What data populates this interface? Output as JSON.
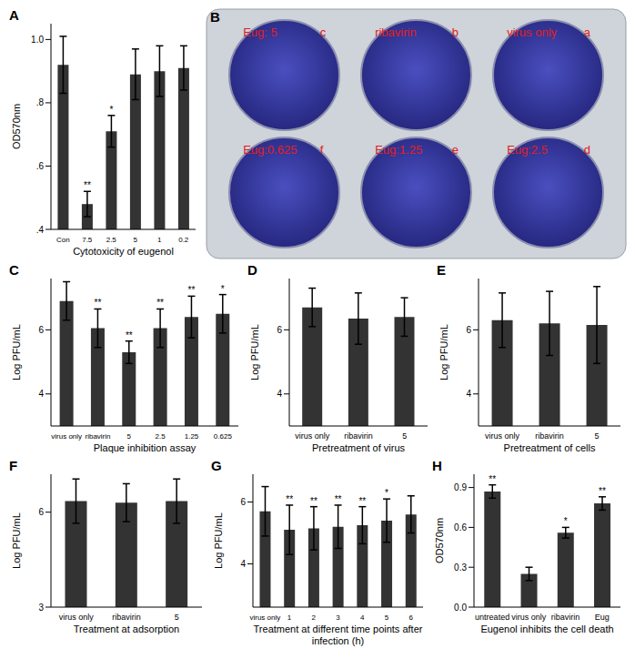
{
  "chart_data": [
    {
      "panel": "A",
      "type": "bar",
      "categories": [
        "Con",
        "7.5",
        "2.5",
        "5",
        "1",
        "0.2"
      ],
      "values": [
        0.92,
        0.48,
        0.71,
        0.89,
        0.9,
        0.91
      ],
      "errors": [
        0.09,
        0.04,
        0.05,
        0.08,
        0.08,
        0.07
      ],
      "significance": [
        null,
        "**",
        "*",
        null,
        null,
        null
      ],
      "ylabel": "OD570nm",
      "xlabel": "Cytotoxicity of eugenol",
      "ylim": [
        0.4,
        1.05
      ],
      "yticks": [
        {
          "value": 0.4,
          "label": ".4"
        },
        {
          "value": 0.6,
          "label": ".6"
        },
        {
          "value": 0.8,
          "label": ".8"
        },
        {
          "value": 1.0,
          "label": "1.0"
        }
      ],
      "color": "#333333"
    },
    {
      "panel": "C",
      "type": "bar",
      "categories": [
        "virus only",
        "ribavirin",
        "5",
        "2.5",
        "1.25",
        "0.625"
      ],
      "values": [
        6.9,
        6.05,
        5.3,
        6.05,
        6.4,
        6.5
      ],
      "errors": [
        0.6,
        0.6,
        0.35,
        0.6,
        0.65,
        0.6
      ],
      "significance": [
        null,
        "**",
        "**",
        "**",
        "**",
        "*"
      ],
      "ylabel": "Log PFU/mL",
      "xlabel": "Plaque inhibition assay",
      "ylim": [
        3,
        7.6
      ],
      "yticks": [
        4,
        6
      ],
      "color": "#333333"
    },
    {
      "panel": "D",
      "type": "bar",
      "categories": [
        "virus only",
        "ribavirin",
        "5"
      ],
      "values": [
        6.7,
        6.35,
        6.4
      ],
      "errors": [
        0.6,
        0.8,
        0.6
      ],
      "significance": [
        null,
        null,
        null
      ],
      "ylabel": "Log PFU/mL",
      "xlabel": "Pretreatment of virus",
      "ylim": [
        3,
        7.6
      ],
      "yticks": [
        4,
        6
      ],
      "color": "#333333"
    },
    {
      "panel": "E",
      "type": "bar",
      "categories": [
        "virus only",
        "ribavirin",
        "5"
      ],
      "values": [
        6.3,
        6.2,
        6.15
      ],
      "errors": [
        0.85,
        1.0,
        1.2
      ],
      "significance": [
        null,
        null,
        null
      ],
      "ylabel": "Log PFU/mL",
      "xlabel": "Pretreatment of cells",
      "ylim": [
        3,
        7.6
      ],
      "yticks": [
        4,
        6
      ],
      "color": "#333333"
    },
    {
      "panel": "F",
      "type": "bar",
      "categories": [
        "virus only",
        "ribavirin",
        "5"
      ],
      "values": [
        6.35,
        6.3,
        6.35
      ],
      "errors": [
        0.7,
        0.6,
        0.7
      ],
      "significance": [
        null,
        null,
        null
      ],
      "ylabel": "Log PFU/mL",
      "xlabel": "Treatment at adsorption",
      "ylim": [
        3,
        7.2
      ],
      "yticks": [
        3,
        6
      ],
      "color": "#333333"
    },
    {
      "panel": "G",
      "type": "bar",
      "categories": [
        "virus only",
        "1",
        "2",
        "3",
        "4",
        "5",
        "6"
      ],
      "values": [
        5.7,
        5.1,
        5.15,
        5.2,
        5.25,
        5.4,
        5.6
      ],
      "errors": [
        0.8,
        0.8,
        0.7,
        0.7,
        0.6,
        0.7,
        0.6
      ],
      "significance": [
        null,
        "**",
        "**",
        "**",
        "**",
        "*",
        null
      ],
      "ylabel": "Log PFU/mL",
      "xlabel": "Treatment at different time points after infection (h)",
      "ylim": [
        2.6,
        6.9
      ],
      "yticks": [
        4,
        6
      ],
      "color": "#333333"
    },
    {
      "panel": "H",
      "type": "bar",
      "categories": [
        "untreated",
        "virus only",
        "ribavirin",
        "Eug"
      ],
      "values": [
        0.87,
        0.25,
        0.56,
        0.78
      ],
      "errors": [
        0.05,
        0.05,
        0.04,
        0.05
      ],
      "significance": [
        "**",
        null,
        "*",
        "**"
      ],
      "ylabel": "OD570nm",
      "xlabel": "Eugenol inhibits the cell death",
      "ylim": [
        0,
        1.0
      ],
      "yticks": [
        {
          "value": 0,
          "label": "0.0"
        },
        0.3,
        0.6,
        0.9
      ],
      "color": "#333333"
    }
  ],
  "photo": {
    "panel": "B",
    "wells": [
      {
        "label": "Eug: 5",
        "letter": "c"
      },
      {
        "label": "ribavirin",
        "letter": "b"
      },
      {
        "label": "virus only",
        "letter": "a"
      },
      {
        "label": "Eug:0.625",
        "letter": "f"
      },
      {
        "label": "Eug:1.25",
        "letter": "e"
      },
      {
        "label": "Eug:2.5",
        "letter": "d"
      }
    ]
  }
}
